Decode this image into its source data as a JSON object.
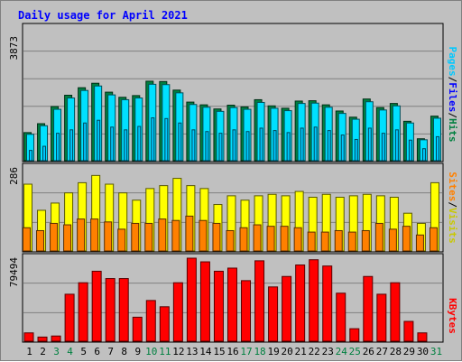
{
  "title": "Daily usage for April 2021",
  "colors": {
    "background": "#c0c0c0",
    "panel": "#c0c0c0",
    "hits": "#008040",
    "files": "#00e0ff",
    "pages": "#00c8ff",
    "visits": "#ffff00",
    "sites": "#ff8000",
    "kbytes": "#ff0000",
    "weekend_day_label": "#008040",
    "weekday_day_label": "#000000",
    "title": "#0000ff"
  },
  "chart_data": [
    {
      "type": "bar",
      "name": "hits-files-pages",
      "categories": [
        "1",
        "2",
        "3",
        "4",
        "5",
        "6",
        "7",
        "8",
        "9",
        "10",
        "11",
        "12",
        "13",
        "14",
        "15",
        "16",
        "17",
        "18",
        "19",
        "20",
        "21",
        "22",
        "23",
        "24",
        "25",
        "26",
        "27",
        "28",
        "29",
        "30",
        "31"
      ],
      "ylim": [
        0,
        3873
      ],
      "max_label": "3873",
      "legend": {
        "hits": "Hits",
        "files": "Files",
        "pages": "Pages",
        "sep": "/"
      },
      "series": [
        {
          "name": "Hits",
          "values": [
            820,
            1080,
            1580,
            1910,
            2130,
            2260,
            2000,
            1850,
            1900,
            2320,
            2310,
            2060,
            1710,
            1630,
            1510,
            1620,
            1570,
            1780,
            1600,
            1530,
            1740,
            1750,
            1630,
            1450,
            1270,
            1800,
            1550,
            1670,
            1150,
            640,
            1300
          ]
        },
        {
          "name": "Files",
          "values": [
            770,
            1020,
            1500,
            1830,
            2050,
            2180,
            1920,
            1780,
            1830,
            2230,
            2220,
            1980,
            1640,
            1560,
            1440,
            1550,
            1500,
            1700,
            1530,
            1460,
            1670,
            1680,
            1560,
            1380,
            1210,
            1720,
            1480,
            1600,
            1100,
            610,
            1240
          ]
        },
        {
          "name": "Pages",
          "values": [
            300,
            420,
            800,
            900,
            1100,
            1180,
            980,
            900,
            1000,
            1250,
            1230,
            1100,
            900,
            850,
            800,
            900,
            850,
            950,
            880,
            820,
            950,
            980,
            880,
            750,
            620,
            950,
            800,
            900,
            600,
            350,
            700
          ]
        }
      ]
    },
    {
      "type": "bar",
      "name": "visits-sites",
      "categories": [
        "1",
        "2",
        "3",
        "4",
        "5",
        "6",
        "7",
        "8",
        "9",
        "10",
        "11",
        "12",
        "13",
        "14",
        "15",
        "16",
        "17",
        "18",
        "19",
        "20",
        "21",
        "22",
        "23",
        "24",
        "25",
        "26",
        "27",
        "28",
        "29",
        "30",
        "31"
      ],
      "ylim": [
        0,
        286
      ],
      "max_label": "286",
      "legend": {
        "visits": "Visits",
        "sites": "Sites",
        "sep": "/"
      },
      "series": [
        {
          "name": "Visits",
          "values": [
            230,
            140,
            165,
            200,
            235,
            260,
            230,
            200,
            175,
            215,
            225,
            250,
            225,
            215,
            160,
            190,
            175,
            190,
            195,
            190,
            205,
            185,
            195,
            185,
            190,
            195,
            190,
            185,
            130,
            95,
            235
          ]
        },
        {
          "name": "Sites",
          "values": [
            80,
            70,
            95,
            90,
            110,
            110,
            100,
            75,
            95,
            95,
            110,
            105,
            120,
            105,
            95,
            70,
            80,
            90,
            85,
            85,
            80,
            65,
            65,
            70,
            65,
            70,
            95,
            75,
            85,
            55,
            80
          ]
        }
      ]
    },
    {
      "type": "bar",
      "name": "kbytes",
      "categories": [
        "1",
        "2",
        "3",
        "4",
        "5",
        "6",
        "7",
        "8",
        "9",
        "10",
        "11",
        "12",
        "13",
        "14",
        "15",
        "16",
        "17",
        "18",
        "19",
        "20",
        "21",
        "22",
        "23",
        "24",
        "25",
        "26",
        "27",
        "28",
        "29",
        "30",
        "31"
      ],
      "ylim": [
        0,
        79494
      ],
      "max_label": "79494",
      "legend": {
        "kbytes": "KBytes"
      },
      "series": [
        {
          "name": "KBytes",
          "values": [
            8000,
            4000,
            5000,
            45000,
            56000,
            67000,
            60000,
            60000,
            23000,
            39000,
            33000,
            56000,
            80000,
            76000,
            67000,
            70000,
            58000,
            77000,
            52000,
            62000,
            73000,
            78000,
            72000,
            46000,
            12000,
            62000,
            45000,
            56000,
            19000,
            8000,
            0
          ]
        }
      ]
    }
  ]
}
